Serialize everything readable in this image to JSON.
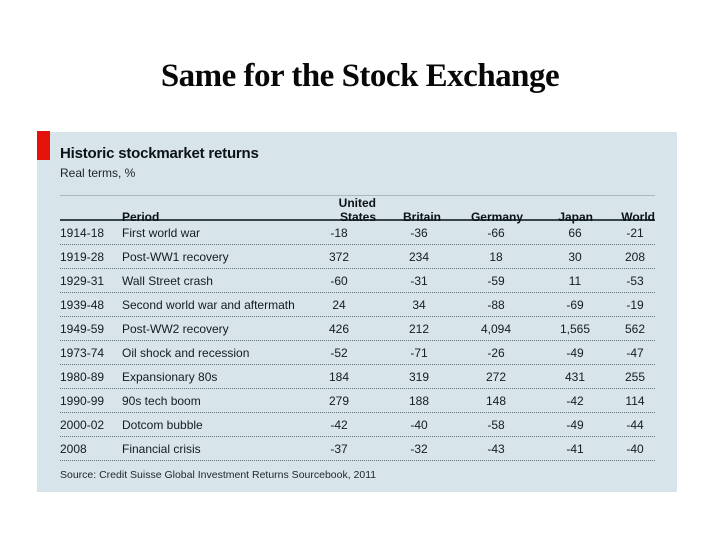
{
  "slide": {
    "title": "Same for the Stock Exchange"
  },
  "panel": {
    "title": "Historic stockmarket returns",
    "subtitle": "Real terms, %",
    "source": "Source: Credit Suisse Global Investment Returns Sourcebook, 2011",
    "accent_color": "#e3120b",
    "background_color": "#d7e4e9"
  },
  "table": {
    "headers": {
      "period": "Period",
      "us": "United States",
      "britain": "Britain",
      "germany": "Germany",
      "japan": "Japan",
      "world": "World"
    },
    "rows": [
      {
        "years": "1914-18",
        "period": "First world war",
        "us": "-18",
        "britain": "-36",
        "germany": "-66",
        "japan": "66",
        "world": "-21"
      },
      {
        "years": "1919-28",
        "period": "Post-WW1 recovery",
        "us": "372",
        "britain": "234",
        "germany": "18",
        "japan": "30",
        "world": "208"
      },
      {
        "years": "1929-31",
        "period": "Wall Street crash",
        "us": "-60",
        "britain": "-31",
        "germany": "-59",
        "japan": "11",
        "world": "-53"
      },
      {
        "years": "1939-48",
        "period": "Second world war and aftermath",
        "us": "24",
        "britain": "34",
        "germany": "-88",
        "japan": "-69",
        "world": "-19"
      },
      {
        "years": "1949-59",
        "period": "Post-WW2 recovery",
        "us": "426",
        "britain": "212",
        "germany": "4,094",
        "japan": "1,565",
        "world": "562"
      },
      {
        "years": "1973-74",
        "period": "Oil shock and recession",
        "us": "-52",
        "britain": "-71",
        "germany": "-26",
        "japan": "-49",
        "world": "-47"
      },
      {
        "years": "1980-89",
        "period": "Expansionary 80s",
        "us": "184",
        "britain": "319",
        "germany": "272",
        "japan": "431",
        "world": "255"
      },
      {
        "years": "1990-99",
        "period": "90s tech boom",
        "us": "279",
        "britain": "188",
        "germany": "148",
        "japan": "-42",
        "world": "114"
      },
      {
        "years": "2000-02",
        "period": "Dotcom bubble",
        "us": "-42",
        "britain": "-40",
        "germany": "-58",
        "japan": "-49",
        "world": "-44"
      },
      {
        "years": "2008",
        "period": "Financial crisis",
        "us": "-37",
        "britain": "-32",
        "germany": "-43",
        "japan": "-41",
        "world": "-40"
      }
    ]
  },
  "chart_data": {
    "type": "table",
    "title": "Historic stockmarket returns",
    "subtitle": "Real terms, %",
    "categories": [
      "1914-18 First world war",
      "1919-28 Post-WW1 recovery",
      "1929-31 Wall Street crash",
      "1939-48 Second world war and aftermath",
      "1949-59 Post-WW2 recovery",
      "1973-74 Oil shock and recession",
      "1980-89 Expansionary 80s",
      "1990-99 90s tech boom",
      "2000-02 Dotcom bubble",
      "2008 Financial crisis"
    ],
    "series": [
      {
        "name": "United States",
        "values": [
          -18,
          372,
          -60,
          24,
          426,
          -52,
          184,
          279,
          -42,
          -37
        ]
      },
      {
        "name": "Britain",
        "values": [
          -36,
          234,
          -31,
          34,
          212,
          -71,
          319,
          188,
          -40,
          -32
        ]
      },
      {
        "name": "Germany",
        "values": [
          -66,
          18,
          -59,
          -88,
          4094,
          -26,
          272,
          148,
          -58,
          -43
        ]
      },
      {
        "name": "Japan",
        "values": [
          66,
          30,
          11,
          -69,
          1565,
          -49,
          431,
          -42,
          -49,
          -41
        ]
      },
      {
        "name": "World",
        "values": [
          -21,
          208,
          -53,
          -19,
          562,
          -47,
          255,
          114,
          -44,
          -40
        ]
      }
    ],
    "source": "Credit Suisse Global Investment Returns Sourcebook, 2011"
  }
}
